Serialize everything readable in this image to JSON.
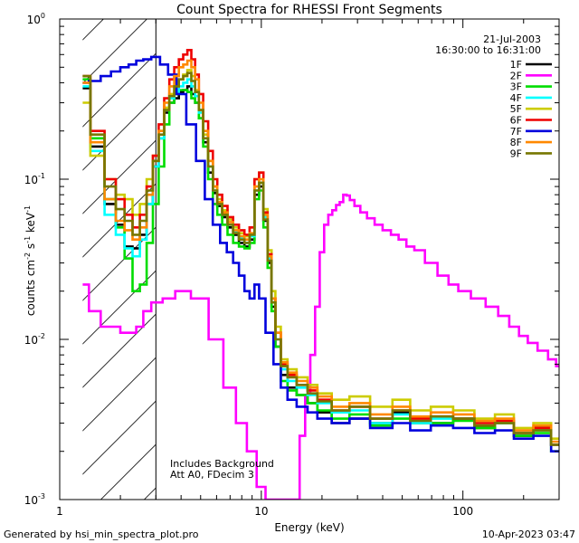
{
  "chart_data": {
    "type": "line",
    "title": "Count Spectra for RHESSI Front Segments",
    "xlabel": "Energy (keV)",
    "ylabel_parts": {
      "pre": "counts cm",
      "e1": "-2",
      "mid": " s",
      "e2": "-1",
      "post": " keV",
      "e3": "-1"
    },
    "xscale": "log",
    "yscale": "log",
    "xlim": [
      1,
      300
    ],
    "ylim": [
      0.001,
      1
    ],
    "x_ticks": [
      {
        "v": 1,
        "label": "1"
      },
      {
        "v": 10,
        "label": "10"
      },
      {
        "v": 100,
        "label": "100"
      }
    ],
    "y_ticks": [
      {
        "v": 0.001,
        "base": "10",
        "exp": "-3"
      },
      {
        "v": 0.01,
        "base": "10",
        "exp": "-2"
      },
      {
        "v": 0.1,
        "base": "10",
        "exp": "-1"
      },
      {
        "v": 1,
        "base": "10",
        "exp": "0"
      }
    ],
    "shaded_region": {
      "x": [
        1.3,
        3.0
      ],
      "style": "diagonal-hatch"
    },
    "date": "21-Jul-2003",
    "time_range": "16:30:00 to 16:31:00",
    "legend_position": "top-right",
    "annotations": [
      "Includes Background",
      "Att A0, FDecim 3"
    ],
    "footer_left": "Generated by hsi_min_spectra_plot.pro",
    "footer_right": "10-Apr-2023 03:47",
    "series": [
      {
        "name": "1F",
        "color": "#000000",
        "x": [
          1.3,
          1.55,
          1.8,
          2.0,
          2.2,
          2.4,
          2.6,
          2.8,
          3.0,
          3.2,
          3.4,
          3.6,
          3.8,
          4.0,
          4.2,
          4.4,
          4.6,
          4.8,
          5.0,
          5.3,
          5.6,
          5.9,
          6.2,
          6.6,
          7.0,
          7.5,
          8.0,
          8.5,
          9.0,
          9.5,
          10.0,
          10.5,
          11.0,
          11.5,
          12.0,
          13,
          14,
          16,
          18,
          20,
          25,
          30,
          40,
          50,
          60,
          80,
          100,
          130,
          160,
          200,
          250,
          300
        ],
        "y": [
          0.37,
          0.16,
          0.07,
          0.052,
          0.038,
          0.037,
          0.045,
          0.07,
          0.12,
          0.18,
          0.26,
          0.3,
          0.32,
          0.35,
          0.36,
          0.38,
          0.34,
          0.3,
          0.24,
          0.17,
          0.11,
          0.082,
          0.068,
          0.058,
          0.05,
          0.045,
          0.04,
          0.038,
          0.042,
          0.08,
          0.09,
          0.055,
          0.03,
          0.016,
          0.009,
          0.006,
          0.005,
          0.0045,
          0.004,
          0.0035,
          0.003,
          0.0032,
          0.003,
          0.0035,
          0.003,
          0.003,
          0.0032,
          0.0028,
          0.003,
          0.0025,
          0.0028,
          0.0022
        ]
      },
      {
        "name": "2F",
        "color": "#ff00ff",
        "x": [
          1.3,
          1.5,
          1.7,
          1.9,
          2.1,
          2.3,
          2.5,
          2.7,
          3.0,
          3.5,
          4.0,
          5.0,
          6.0,
          7.0,
          8.0,
          9.0,
          10.0,
          11,
          12,
          13,
          14,
          15,
          16,
          17,
          18,
          19,
          20,
          21,
          22,
          23,
          24,
          25,
          26,
          27,
          28,
          30,
          32,
          35,
          38,
          42,
          46,
          50,
          55,
          60,
          70,
          80,
          90,
          100,
          120,
          140,
          160,
          180,
          200,
          220,
          250,
          280,
          300
        ],
        "y": [
          0.022,
          0.015,
          0.012,
          0.012,
          0.011,
          0.011,
          0.012,
          0.015,
          0.017,
          0.018,
          0.02,
          0.018,
          0.01,
          0.005,
          0.003,
          0.002,
          0.0012,
          0.001,
          0.001,
          0.001,
          0.001,
          0.001,
          0.0025,
          0.0045,
          0.008,
          0.016,
          0.035,
          0.052,
          0.06,
          0.064,
          0.069,
          0.072,
          0.08,
          0.079,
          0.074,
          0.068,
          0.062,
          0.057,
          0.052,
          0.048,
          0.045,
          0.042,
          0.038,
          0.036,
          0.03,
          0.025,
          0.022,
          0.02,
          0.018,
          0.016,
          0.014,
          0.012,
          0.0105,
          0.0095,
          0.0085,
          0.0075,
          0.0068
        ]
      },
      {
        "name": "3F",
        "color": "#00dd00",
        "x": [
          1.3,
          1.55,
          1.8,
          2.0,
          2.2,
          2.4,
          2.6,
          2.8,
          3.0,
          3.2,
          3.4,
          3.6,
          3.8,
          4.0,
          4.2,
          4.4,
          4.6,
          4.8,
          5.0,
          5.3,
          5.6,
          5.9,
          6.2,
          6.6,
          7.0,
          7.5,
          8.0,
          8.5,
          9.0,
          9.5,
          10.0,
          10.5,
          11.0,
          11.5,
          12.0,
          13,
          14,
          16,
          18,
          20,
          25,
          30,
          40,
          50,
          60,
          80,
          100,
          130,
          160,
          200,
          250,
          300
        ],
        "y": [
          0.42,
          0.18,
          0.075,
          0.05,
          0.032,
          0.02,
          0.022,
          0.04,
          0.07,
          0.12,
          0.22,
          0.3,
          0.34,
          0.36,
          0.36,
          0.35,
          0.32,
          0.3,
          0.24,
          0.16,
          0.1,
          0.07,
          0.06,
          0.052,
          0.045,
          0.04,
          0.038,
          0.037,
          0.04,
          0.075,
          0.085,
          0.05,
          0.028,
          0.015,
          0.009,
          0.0055,
          0.0048,
          0.0045,
          0.004,
          0.0036,
          0.0032,
          0.0034,
          0.0029,
          0.0032,
          0.003,
          0.003,
          0.0031,
          0.0028,
          0.003,
          0.0025,
          0.0026,
          0.002
        ]
      },
      {
        "name": "4F",
        "color": "#00ffff",
        "x": [
          1.3,
          1.55,
          1.8,
          2.0,
          2.2,
          2.4,
          2.6,
          2.8,
          3.0,
          3.2,
          3.4,
          3.6,
          3.8,
          4.0,
          4.2,
          4.4,
          4.6,
          4.8,
          5.0,
          5.3,
          5.6,
          5.9,
          6.2,
          6.6,
          7.0,
          7.5,
          8.0,
          8.5,
          9.0,
          9.5,
          10.0,
          10.5,
          11.0,
          11.5,
          12.0,
          13,
          14,
          16,
          18,
          20,
          25,
          30,
          40,
          50,
          60,
          80,
          100,
          130,
          160,
          200,
          250,
          300
        ],
        "y": [
          0.38,
          0.15,
          0.06,
          0.045,
          0.037,
          0.033,
          0.042,
          0.07,
          0.12,
          0.18,
          0.27,
          0.32,
          0.35,
          0.38,
          0.4,
          0.42,
          0.38,
          0.33,
          0.26,
          0.18,
          0.12,
          0.085,
          0.07,
          0.06,
          0.052,
          0.047,
          0.043,
          0.04,
          0.044,
          0.085,
          0.095,
          0.058,
          0.032,
          0.017,
          0.01,
          0.0065,
          0.0055,
          0.005,
          0.0045,
          0.004,
          0.0035,
          0.0036,
          0.003,
          0.0034,
          0.003,
          0.0032,
          0.0032,
          0.0029,
          0.003,
          0.0026,
          0.0027,
          0.0022
        ]
      },
      {
        "name": "5F",
        "color": "#cccc00",
        "x": [
          1.3,
          1.55,
          1.8,
          2.0,
          2.2,
          2.4,
          2.6,
          2.8,
          3.0,
          3.2,
          3.4,
          3.6,
          3.8,
          4.0,
          4.2,
          4.4,
          4.6,
          4.8,
          5.0,
          5.3,
          5.6,
          5.9,
          6.2,
          6.6,
          7.0,
          7.5,
          8.0,
          8.5,
          9.0,
          9.5,
          10.0,
          10.5,
          11.0,
          11.5,
          12.0,
          13,
          14,
          16,
          18,
          20,
          25,
          30,
          40,
          50,
          60,
          80,
          100,
          130,
          160,
          200,
          250,
          300
        ],
        "y": [
          0.3,
          0.14,
          0.1,
          0.08,
          0.075,
          0.06,
          0.07,
          0.1,
          0.14,
          0.2,
          0.28,
          0.34,
          0.38,
          0.42,
          0.45,
          0.48,
          0.44,
          0.36,
          0.27,
          0.19,
          0.13,
          0.09,
          0.075,
          0.064,
          0.056,
          0.05,
          0.046,
          0.044,
          0.05,
          0.1,
          0.11,
          0.065,
          0.036,
          0.02,
          0.012,
          0.0075,
          0.0065,
          0.0058,
          0.0052,
          0.0046,
          0.0042,
          0.0044,
          0.0038,
          0.0042,
          0.0036,
          0.0038,
          0.0036,
          0.0032,
          0.0034,
          0.0028,
          0.003,
          0.0024
        ]
      },
      {
        "name": "6F",
        "color": "#ee0000",
        "x": [
          1.3,
          1.55,
          1.8,
          2.0,
          2.2,
          2.4,
          2.6,
          2.8,
          3.0,
          3.2,
          3.4,
          3.6,
          3.8,
          4.0,
          4.2,
          4.4,
          4.6,
          4.8,
          5.0,
          5.3,
          5.6,
          5.9,
          6.2,
          6.6,
          7.0,
          7.5,
          8.0,
          8.5,
          9.0,
          9.5,
          10.0,
          10.5,
          11.0,
          11.5,
          12.0,
          13,
          14,
          16,
          18,
          20,
          25,
          30,
          40,
          50,
          60,
          80,
          100,
          130,
          160,
          200,
          250,
          300
        ],
        "y": [
          0.44,
          0.2,
          0.1,
          0.075,
          0.06,
          0.05,
          0.06,
          0.09,
          0.14,
          0.22,
          0.32,
          0.42,
          0.5,
          0.56,
          0.6,
          0.64,
          0.56,
          0.45,
          0.34,
          0.23,
          0.15,
          0.1,
          0.08,
          0.068,
          0.058,
          0.052,
          0.048,
          0.045,
          0.05,
          0.1,
          0.11,
          0.062,
          0.034,
          0.018,
          0.011,
          0.007,
          0.006,
          0.0052,
          0.0048,
          0.0042,
          0.0036,
          0.0038,
          0.0032,
          0.0036,
          0.0032,
          0.0033,
          0.0032,
          0.003,
          0.0031,
          0.0026,
          0.0028,
          0.0022
        ]
      },
      {
        "name": "7F",
        "color": "#0000dd",
        "x": [
          1.3,
          1.5,
          1.7,
          1.9,
          2.1,
          2.3,
          2.5,
          2.7,
          3.0,
          3.3,
          3.6,
          4.0,
          4.5,
          5.0,
          5.5,
          6.0,
          6.5,
          7.0,
          7.5,
          8.0,
          8.5,
          9.0,
          9.5,
          10.0,
          11,
          12,
          13,
          14,
          16,
          18,
          20,
          25,
          30,
          40,
          50,
          60,
          80,
          100,
          130,
          160,
          200,
          250,
          300
        ],
        "y": [
          0.4,
          0.41,
          0.44,
          0.47,
          0.5,
          0.52,
          0.55,
          0.56,
          0.58,
          0.52,
          0.45,
          0.34,
          0.22,
          0.13,
          0.075,
          0.052,
          0.04,
          0.035,
          0.03,
          0.025,
          0.02,
          0.018,
          0.022,
          0.018,
          0.011,
          0.007,
          0.005,
          0.0042,
          0.0038,
          0.0035,
          0.0032,
          0.003,
          0.0032,
          0.0028,
          0.003,
          0.0027,
          0.0029,
          0.0028,
          0.0026,
          0.0027,
          0.0024,
          0.0025,
          0.002
        ]
      },
      {
        "name": "8F",
        "color": "#ff8800",
        "x": [
          1.3,
          1.55,
          1.8,
          2.0,
          2.2,
          2.4,
          2.6,
          2.8,
          3.0,
          3.2,
          3.4,
          3.6,
          3.8,
          4.0,
          4.2,
          4.4,
          4.6,
          4.8,
          5.0,
          5.3,
          5.6,
          5.9,
          6.2,
          6.6,
          7.0,
          7.5,
          8.0,
          8.5,
          9.0,
          9.5,
          10.0,
          10.5,
          11.0,
          11.5,
          12.0,
          13,
          14,
          16,
          18,
          20,
          25,
          30,
          40,
          50,
          60,
          80,
          100,
          130,
          160,
          200,
          250,
          300
        ],
        "y": [
          0.4,
          0.17,
          0.075,
          0.055,
          0.048,
          0.042,
          0.05,
          0.08,
          0.13,
          0.2,
          0.3,
          0.38,
          0.44,
          0.5,
          0.52,
          0.55,
          0.5,
          0.42,
          0.3,
          0.2,
          0.13,
          0.09,
          0.072,
          0.062,
          0.054,
          0.048,
          0.044,
          0.042,
          0.046,
          0.09,
          0.1,
          0.06,
          0.033,
          0.018,
          0.011,
          0.0072,
          0.0062,
          0.0055,
          0.005,
          0.0044,
          0.0038,
          0.004,
          0.0034,
          0.0038,
          0.0033,
          0.0035,
          0.0034,
          0.0031,
          0.0032,
          0.0027,
          0.0029,
          0.0023
        ]
      },
      {
        "name": "9F",
        "color": "#777700",
        "x": [
          1.3,
          1.55,
          1.8,
          2.0,
          2.2,
          2.4,
          2.6,
          2.8,
          3.0,
          3.2,
          3.4,
          3.6,
          3.8,
          4.0,
          4.2,
          4.4,
          4.6,
          4.8,
          5.0,
          5.3,
          5.6,
          5.9,
          6.2,
          6.6,
          7.0,
          7.5,
          8.0,
          8.5,
          9.0,
          9.5,
          10.0,
          10.5,
          11.0,
          11.5,
          12.0,
          13,
          14,
          16,
          18,
          20,
          25,
          30,
          40,
          50,
          60,
          80,
          100,
          130,
          160,
          200,
          250,
          300
        ],
        "y": [
          0.44,
          0.19,
          0.09,
          0.065,
          0.055,
          0.045,
          0.055,
          0.085,
          0.13,
          0.19,
          0.27,
          0.33,
          0.38,
          0.42,
          0.44,
          0.46,
          0.41,
          0.35,
          0.27,
          0.18,
          0.12,
          0.085,
          0.07,
          0.06,
          0.052,
          0.046,
          0.042,
          0.04,
          0.045,
          0.085,
          0.095,
          0.056,
          0.031,
          0.017,
          0.01,
          0.0068,
          0.0058,
          0.0052,
          0.0046,
          0.0041,
          0.0036,
          0.0038,
          0.0032,
          0.0036,
          0.0031,
          0.0033,
          0.0032,
          0.0029,
          0.003,
          0.0026,
          0.0027,
          0.0022
        ]
      }
    ]
  }
}
